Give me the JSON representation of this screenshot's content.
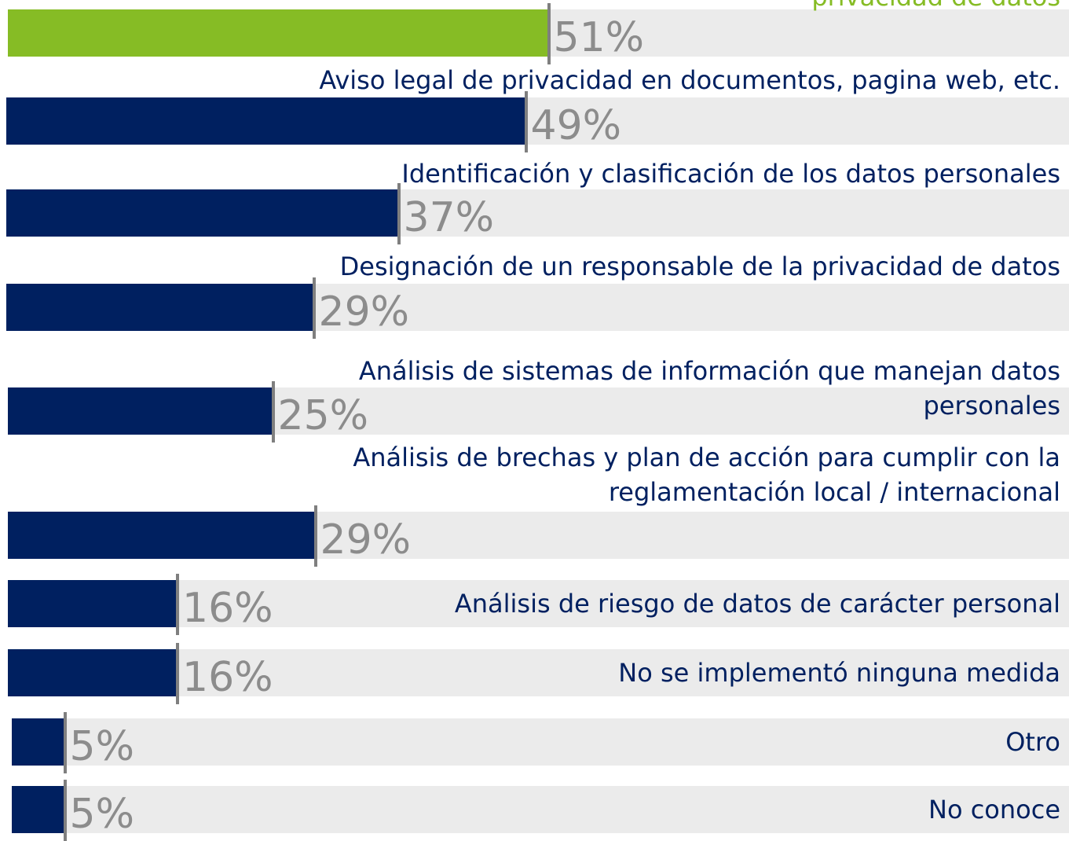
{
  "chart_data": {
    "type": "bar",
    "categories": [
      "privacidad de datos",
      "Aviso legal de privacidad en documentos, pagina web, etc.",
      "Identificación y clasificación de los datos personales",
      "Designación de un responsable de la privacidad de datos",
      "Análisis de sistemas de información que manejan datos personales",
      "Análisis de brechas y plan de acción para cumplir con la reglamentación local / internacional",
      "Análisis de riesgo de datos de carácter personal",
      "No se implementó ninguna medida",
      "Otro",
      "No conoce"
    ],
    "values": [
      51,
      49,
      37,
      29,
      25,
      29,
      16,
      16,
      5,
      5
    ],
    "value_labels": [
      "51%",
      "49%",
      "37%",
      "29%",
      "25%",
      "29%",
      "16%",
      "16%",
      "5%",
      "5%"
    ],
    "colors": [
      "#86bc25",
      "#002060",
      "#002060",
      "#002060",
      "#002060",
      "#002060",
      "#002060",
      "#002060",
      "#002060",
      "#002060"
    ]
  }
}
